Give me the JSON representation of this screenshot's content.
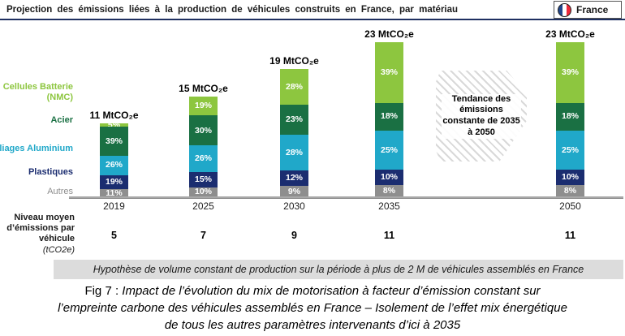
{
  "header": {
    "title": "Projection des émissions liées à la production de véhicules construits en France, par matériau",
    "country_label": "France"
  },
  "chart_data": {
    "type": "bar",
    "stacked": true,
    "title": "Projection des émissions liées à la production de véhicules construits en France, par matériau",
    "unit": "MtCO₂e",
    "categories": [
      "2019",
      "2025",
      "2030",
      "2035",
      "2050"
    ],
    "totals_mtco2e": [
      11,
      15,
      19,
      23,
      23
    ],
    "total_labels": [
      "11 MtCO₂e",
      "15 MtCO₂e",
      "19 MtCO₂e",
      "23 MtCO₂e",
      "23 MtCO₂e"
    ],
    "series": [
      {
        "name": "Cellules Batterie (NMC)",
        "color": "#8DC63F",
        "values_pct": [
          5,
          19,
          28,
          39,
          39
        ]
      },
      {
        "name": "Acier",
        "color": "#1A7043",
        "values_pct": [
          39,
          30,
          23,
          18,
          18
        ]
      },
      {
        "name": "Alliages Aluminium",
        "color": "#20A8C9",
        "values_pct": [
          26,
          26,
          28,
          25,
          25
        ]
      },
      {
        "name": "Plastiques",
        "color": "#1B2D70",
        "values_pct": [
          19,
          15,
          12,
          10,
          10
        ]
      },
      {
        "name": "Autres",
        "color": "#8E8E8E",
        "values_pct": [
          11,
          10,
          9,
          8,
          8
        ]
      }
    ],
    "legend_position": "left",
    "grid": false,
    "annotation": "Tendance des émissions constante de 2035 à 2050",
    "per_vehicle": {
      "label": "Niveau moyen d’émissions par véhicule",
      "unit": "(tCO2e)",
      "values": [
        5,
        7,
        9,
        11,
        11
      ]
    }
  },
  "footnote": "Hypothèse de volume constant de production sur la période à plus de 2 M de véhicules assemblés en France",
  "caption": {
    "prefix": "Fig 7 : ",
    "line1": "Impact de l’évolution du mix de motorisation à facteur d’émission constant sur",
    "line2": "l’empreinte carbone des véhicules assemblés en France – Isolement de l’effet mix énergétique",
    "line3": "de tous les autres paramètres intervenants d’ici à 2035"
  }
}
